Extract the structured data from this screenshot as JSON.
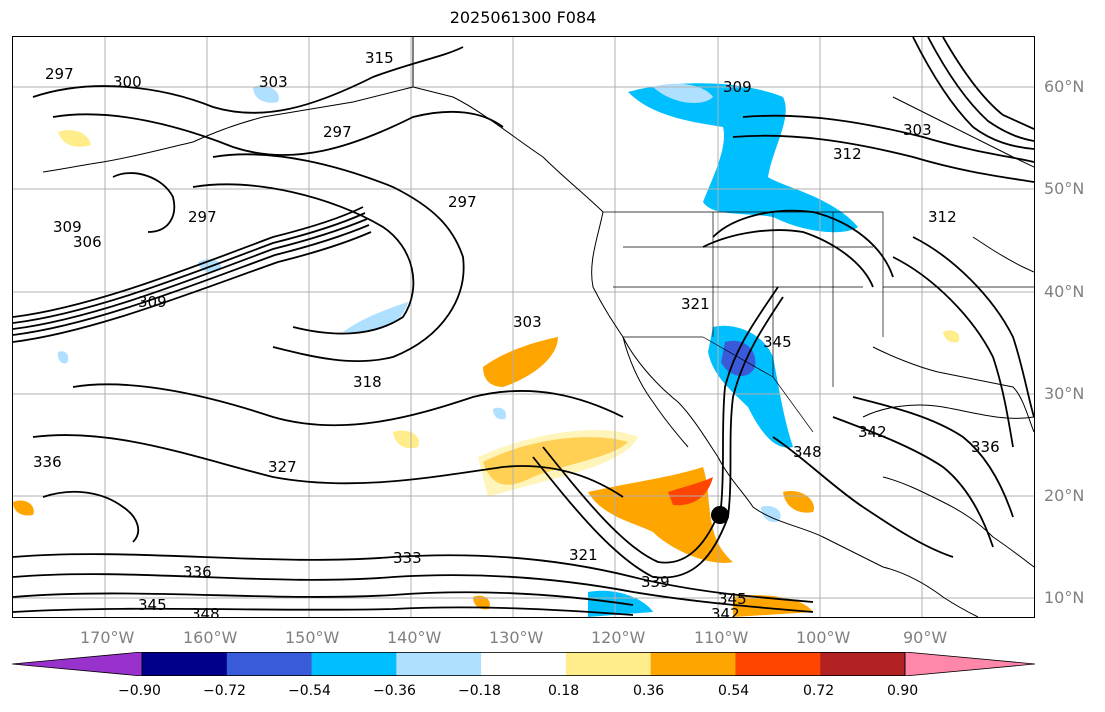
{
  "title": "2025061300 F084",
  "longitude_labels": [
    "170°W",
    "160°W",
    "150°W",
    "140°W",
    "130°W",
    "120°W",
    "110°W",
    "100°W",
    "90°W"
  ],
  "latitude_labels": [
    "60°N",
    "50°N",
    "40°N",
    "30°N",
    "20°N",
    "10°N"
  ],
  "contour_labels": [
    "297",
    "300",
    "303",
    "306",
    "309",
    "312",
    "315",
    "318",
    "321",
    "327",
    "333",
    "336",
    "339",
    "342",
    "345",
    "348"
  ],
  "colorbar": {
    "tick_labels": [
      "−0.90",
      "−0.72",
      "−0.54",
      "−0.36",
      "−0.18",
      "0.18",
      "0.36",
      "0.54",
      "0.72",
      "0.90"
    ],
    "colors": [
      "#9932cc",
      "#00008b",
      "#3a5bd9",
      "#00bfff",
      "#b0e0ff",
      "#ffffff",
      "#ffec8b",
      "#ffa500",
      "#ff4500",
      "#b22222",
      "#ff88aa"
    ]
  }
}
